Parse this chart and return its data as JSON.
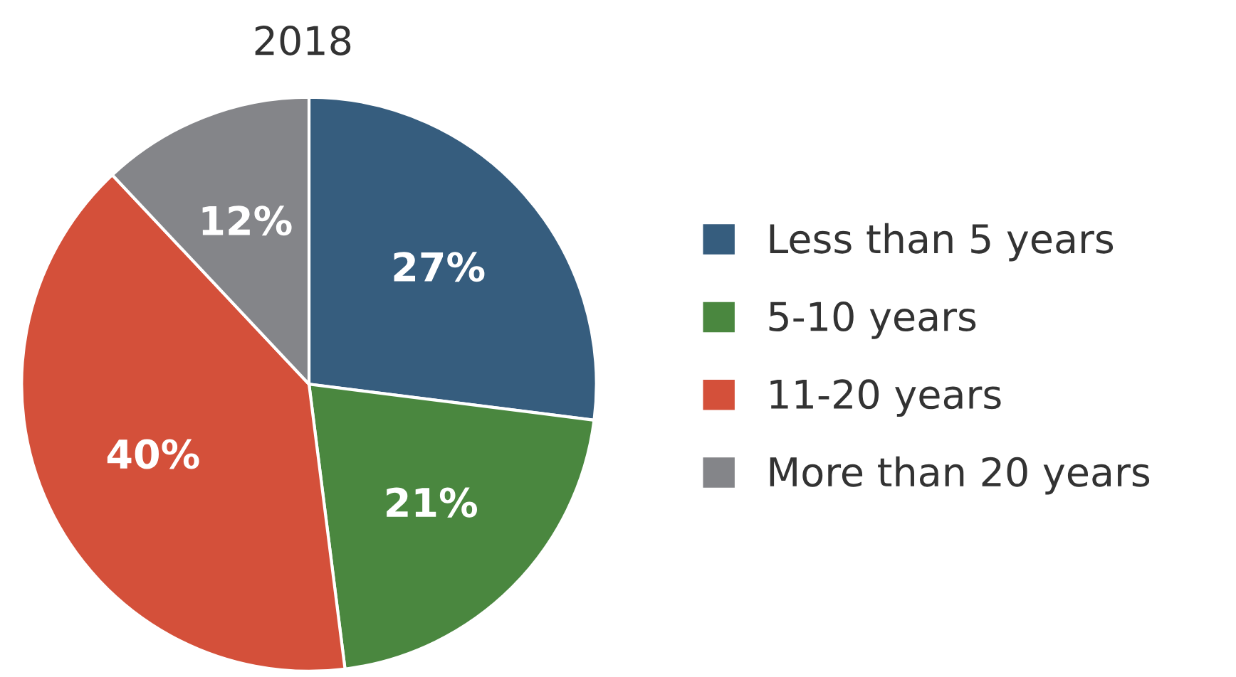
{
  "chart_data": {
    "type": "pie",
    "title": "2018",
    "categories": [
      "Less than 5 years",
      "5-10 years",
      "11-20 years",
      "More than 20 years"
    ],
    "values": [
      27,
      21,
      40,
      12
    ],
    "colors": [
      "#365d7e",
      "#4a873f",
      "#d4503a",
      "#848589"
    ],
    "value_labels": [
      "27%",
      "21%",
      "40%",
      "12%"
    ],
    "legend": "right"
  }
}
